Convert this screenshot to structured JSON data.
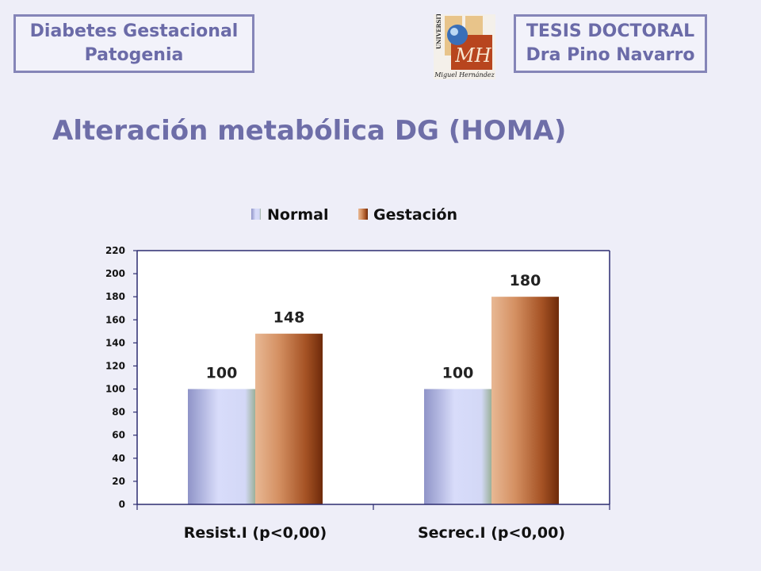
{
  "header": {
    "left_line1": "Diabetes Gestacional",
    "left_line2": "Patogenia",
    "right_line1": "TESIS DOCTORAL",
    "right_line2": "Dra Pino Navarro",
    "logo_text_vertical": "UNIVERSITAS",
    "logo_monogram": "MH",
    "logo_caption": "Miguel Hernández"
  },
  "slide": {
    "title": "Alteración metabólica DG (HOMA)"
  },
  "colors": {
    "accent": "#6e6ea8",
    "normal_light": "#d8dcfa",
    "normal_dark": "#8f94c8",
    "gestacion_light": "#e6b48e",
    "gestacion_dark": "#7a3410"
  },
  "chart_data": {
    "type": "bar",
    "title": "",
    "xlabel": "",
    "ylabel": "",
    "categories": [
      "Resist.I (p<0,00)",
      "Secrec.I (p<0,00)"
    ],
    "series": [
      {
        "name": "Normal",
        "values": [
          100,
          100
        ]
      },
      {
        "name": "Gestación",
        "values": [
          148,
          180
        ]
      }
    ],
    "ylim": [
      0,
      220
    ],
    "yticks": [
      0,
      20,
      40,
      60,
      80,
      100,
      120,
      140,
      160,
      180,
      200,
      220
    ],
    "legend_position": "top",
    "grid": false
  }
}
